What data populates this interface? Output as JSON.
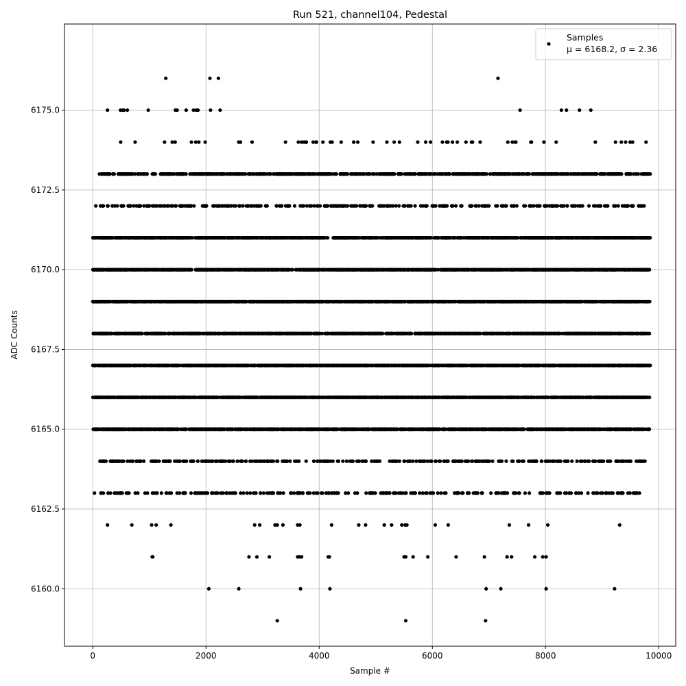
{
  "chart_data": {
    "type": "scatter",
    "title": "Run 521, channel104, Pedestal",
    "xlabel": "Sample #",
    "ylabel": "ADC Counts",
    "xlim": [
      -500,
      10300
    ],
    "ylim": [
      6158.2,
      6177.7
    ],
    "xticks": [
      0,
      2000,
      4000,
      6000,
      8000,
      10000
    ],
    "yticks": [
      6160.0,
      6162.5,
      6165.0,
      6167.5,
      6170.0,
      6172.5,
      6175.0
    ],
    "ytick_labels": [
      "6160.0",
      "6162.5",
      "6165.0",
      "6167.5",
      "6170.0",
      "6172.5",
      "6175.0"
    ],
    "grid": true,
    "legend": {
      "position": "top-right",
      "entries": [
        {
          "name": "Samples",
          "stats_line": "μ = 6168.2, σ = 2.36"
        }
      ]
    },
    "series": [
      {
        "name": "Samples",
        "marker_color": "#000000",
        "sample_count": 9850,
        "bands": [
          {
            "y": 6159,
            "x": [
              3260,
              5530,
              6940
            ]
          },
          {
            "y": 6160,
            "x": [
              2050,
              2580,
              3670,
              4190,
              6950,
              7210,
              8010,
              9220
            ]
          },
          {
            "y": 6161,
            "x": [
              1050,
              1060,
              2760,
              2900,
              3120,
              3620,
              3650,
              3690,
              4160,
              4180,
              5500,
              5530,
              5660,
              5920,
              6420,
              6920,
              7320,
              7400,
              7810,
              7950,
              8010
            ]
          },
          {
            "y": 6162,
            "x": [
              260,
              690,
              1040,
              1120,
              1380,
              2860,
              2950,
              3220,
              3260,
              3360,
              3620,
              3660,
              4220,
              4700,
              4820,
              5150,
              5280,
              5460,
              5520,
              5550,
              6050,
              6280,
              7360,
              7700,
              8040,
              9310
            ]
          },
          {
            "y": 6163,
            "xrange": [
              20,
              9830
            ],
            "count": 260
          },
          {
            "y": 6164,
            "xrange": [
              100,
              9760
            ],
            "count": 330
          },
          {
            "y": 6165,
            "xrange": [
              0,
              9840
            ],
            "count": 1150
          },
          {
            "y": 6166,
            "xrange": [
              0,
              9850
            ],
            "count": 1500
          },
          {
            "y": 6167,
            "xrange": [
              0,
              9850
            ],
            "count": 1650
          },
          {
            "y": 6168,
            "xrange": [
              0,
              9840
            ],
            "count": 1250
          },
          {
            "y": 6169,
            "xrange": [
              0,
              9850
            ],
            "count": 1900
          },
          {
            "y": 6170,
            "xrange": [
              0,
              9850
            ],
            "count": 1450
          },
          {
            "y": 6171,
            "xrange": [
              0,
              9850
            ],
            "count": 1200
          },
          {
            "y": 6172,
            "xrange": [
              0,
              9840
            ],
            "count": 330
          },
          {
            "y": 6173,
            "xrange": [
              100,
              9850
            ],
            "count": 700
          },
          {
            "y": 6174,
            "xrange": [
              100,
              9780
            ],
            "count": 60
          },
          {
            "y": 6175,
            "x": [
              260,
              490,
              530,
              550,
              610,
              980,
              1460,
              1490,
              1650,
              1780,
              1830,
              1860,
              2080,
              2250,
              7550,
              8280,
              8370,
              8600,
              8800
            ]
          },
          {
            "y": 6176,
            "x": [
              1290,
              2070,
              2220,
              7160
            ]
          }
        ]
      }
    ]
  }
}
